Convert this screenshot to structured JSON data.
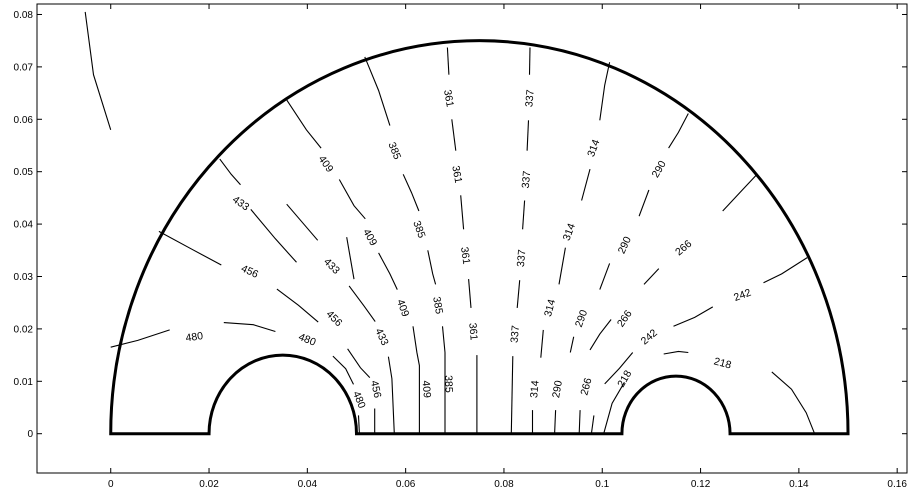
{
  "chart_data": {
    "type": "contour",
    "title": "",
    "xlabel": "",
    "ylabel": "",
    "xlim": [
      -0.015,
      0.162
    ],
    "ylim": [
      -0.0075,
      0.082
    ],
    "xticks": [
      0,
      0.02,
      0.04,
      0.06,
      0.08,
      0.1,
      0.12,
      0.14,
      0.16
    ],
    "xtick_labels": [
      "0",
      "0.02",
      "0.04",
      "0.06",
      "0.08",
      "0.1",
      "0.12",
      "0.14",
      "0.16"
    ],
    "yticks": [
      0,
      0.01,
      0.02,
      0.03,
      0.04,
      0.05,
      0.06,
      0.07,
      0.08
    ],
    "ytick_labels": [
      "0",
      "0.01",
      "0.02",
      "0.03",
      "0.04",
      "0.05",
      "0.06",
      "0.07",
      "0.08"
    ],
    "grid": false,
    "domain": {
      "outer_semicircle": {
        "center": [
          0.075,
          0
        ],
        "radius": 0.075
      },
      "left_hole": {
        "center": [
          0.035,
          0
        ],
        "radius": 0.015
      },
      "right_hole": {
        "center": [
          0.115,
          0
        ],
        "radius": 0.011
      }
    },
    "contour_levels": [
      480,
      456,
      433,
      409,
      385,
      361,
      337,
      314,
      290,
      266,
      242,
      218
    ],
    "contour_labels": [
      {
        "text": "480",
        "x": 0.017,
        "y": 0.0185,
        "angle": -8
      },
      {
        "text": "480",
        "x": 0.04,
        "y": 0.018,
        "angle": 22
      },
      {
        "text": "480",
        "x": 0.0506,
        "y": 0.0065,
        "angle": 68
      },
      {
        "text": "456",
        "x": 0.0283,
        "y": 0.031,
        "angle": 25
      },
      {
        "text": "456",
        "x": 0.0455,
        "y": 0.022,
        "angle": 45
      },
      {
        "text": "456",
        "x": 0.054,
        "y": 0.0085,
        "angle": 78
      },
      {
        "text": "433",
        "x": 0.0265,
        "y": 0.044,
        "angle": 35
      },
      {
        "text": "433",
        "x": 0.045,
        "y": 0.032,
        "angle": 45
      },
      {
        "text": "433",
        "x": 0.0552,
        "y": 0.0185,
        "angle": 65
      },
      {
        "text": "409",
        "x": 0.0438,
        "y": 0.0515,
        "angle": 55
      },
      {
        "text": "409",
        "x": 0.0528,
        "y": 0.0375,
        "angle": 60
      },
      {
        "text": "409",
        "x": 0.0595,
        "y": 0.024,
        "angle": 70
      },
      {
        "text": "409",
        "x": 0.0643,
        "y": 0.0085,
        "angle": 85
      },
      {
        "text": "385",
        "x": 0.0578,
        "y": 0.054,
        "angle": 68
      },
      {
        "text": "385",
        "x": 0.0628,
        "y": 0.039,
        "angle": 70
      },
      {
        "text": "385",
        "x": 0.0666,
        "y": 0.0245,
        "angle": 80
      },
      {
        "text": "385",
        "x": 0.0688,
        "y": 0.0095,
        "angle": 88
      },
      {
        "text": "361",
        "x": 0.0688,
        "y": 0.064,
        "angle": 80
      },
      {
        "text": "361",
        "x": 0.0705,
        "y": 0.0495,
        "angle": 80
      },
      {
        "text": "361",
        "x": 0.0722,
        "y": 0.034,
        "angle": 82
      },
      {
        "text": "361",
        "x": 0.0738,
        "y": 0.0195,
        "angle": 85
      },
      {
        "text": "337",
        "x": 0.0852,
        "y": 0.064,
        "angle": -85
      },
      {
        "text": "337",
        "x": 0.0845,
        "y": 0.0485,
        "angle": -85
      },
      {
        "text": "337",
        "x": 0.0835,
        "y": 0.0335,
        "angle": -85
      },
      {
        "text": "337",
        "x": 0.0822,
        "y": 0.019,
        "angle": -85
      },
      {
        "text": "314",
        "x": 0.0982,
        "y": 0.0545,
        "angle": -70
      },
      {
        "text": "314",
        "x": 0.0932,
        "y": 0.0385,
        "angle": -70
      },
      {
        "text": "314",
        "x": 0.0893,
        "y": 0.024,
        "angle": -75
      },
      {
        "text": "314",
        "x": 0.0862,
        "y": 0.0085,
        "angle": -85
      },
      {
        "text": "290",
        "x": 0.1115,
        "y": 0.0505,
        "angle": -60
      },
      {
        "text": "290",
        "x": 0.1045,
        "y": 0.036,
        "angle": -65
      },
      {
        "text": "290",
        "x": 0.0957,
        "y": 0.022,
        "angle": -70
      },
      {
        "text": "290",
        "x": 0.0908,
        "y": 0.0085,
        "angle": -80
      },
      {
        "text": "266",
        "x": 0.1165,
        "y": 0.0355,
        "angle": -40
      },
      {
        "text": "266",
        "x": 0.1045,
        "y": 0.022,
        "angle": -55
      },
      {
        "text": "266",
        "x": 0.0967,
        "y": 0.009,
        "angle": -75
      },
      {
        "text": "242",
        "x": 0.1285,
        "y": 0.0265,
        "angle": -20
      },
      {
        "text": "242",
        "x": 0.1095,
        "y": 0.0185,
        "angle": -40
      },
      {
        "text": "218",
        "x": 0.1245,
        "y": 0.0135,
        "angle": 15
      },
      {
        "text": "218",
        "x": 0.1045,
        "y": 0.0105,
        "angle": -60
      }
    ],
    "contour_lines": [
      [
        [
          -0.0052,
          0.0805
        ],
        [
          -0.0035,
          0.0685
        ],
        [
          0.0,
          0.058
        ]
      ],
      [
        [
          0.048,
          0.0375
        ],
        [
          0.0495,
          0.0295
        ]
      ],
      [
        [
          0.0358,
          0.0438
        ],
        [
          0.0421,
          0.0369
        ]
      ],
      [
        [
          0.0,
          0.0165
        ],
        [
          0.0055,
          0.0178
        ],
        [
          0.012,
          0.0198
        ]
      ],
      [
        [
          0.023,
          0.0212
        ],
        [
          0.029,
          0.0208
        ],
        [
          0.0335,
          0.0195
        ]
      ],
      [
        [
          0.0452,
          0.0148
        ],
        [
          0.0478,
          0.0124
        ],
        [
          0.0494,
          0.0094
        ]
      ],
      [
        [
          0.0504,
          0.0035
        ],
        [
          0.0506,
          0.0
        ]
      ],
      [
        [
          0.0098,
          0.0386
        ],
        [
          0.0165,
          0.0352
        ],
        [
          0.0225,
          0.0322
        ]
      ],
      [
        [
          0.0338,
          0.0276
        ],
        [
          0.0382,
          0.0245
        ],
        [
          0.0422,
          0.0213
        ]
      ],
      [
        [
          0.0482,
          0.0162
        ],
        [
          0.0508,
          0.0126
        ],
        [
          0.0527,
          0.0107
        ]
      ],
      [
        [
          0.0537,
          0.0048
        ],
        [
          0.0537,
          0.0
        ]
      ],
      [
        [
          0.0222,
          0.0524
        ],
        [
          0.0245,
          0.0495
        ],
        [
          0.0264,
          0.0475
        ]
      ],
      [
        [
          0.0285,
          0.0428
        ],
        [
          0.0335,
          0.0372
        ],
        [
          0.0378,
          0.0327
        ]
      ],
      [
        [
          0.0485,
          0.0282
        ],
        [
          0.0515,
          0.0244
        ],
        [
          0.0538,
          0.0214
        ]
      ],
      [
        [
          0.0565,
          0.0147
        ],
        [
          0.0572,
          0.0105
        ],
        [
          0.0577,
          0.0
        ]
      ],
      [
        [
          0.0358,
          0.0637
        ],
        [
          0.0398,
          0.058
        ],
        [
          0.0428,
          0.0545
        ]
      ],
      [
        [
          0.0465,
          0.0485
        ],
        [
          0.0495,
          0.0435
        ],
        [
          0.0518,
          0.041
        ]
      ],
      [
        [
          0.0545,
          0.0345
        ],
        [
          0.0568,
          0.0305
        ],
        [
          0.0583,
          0.0275
        ]
      ],
      [
        [
          0.0615,
          0.0205
        ],
        [
          0.0623,
          0.0155
        ],
        [
          0.0628,
          0.013
        ],
        [
          0.0628,
          0.0
        ]
      ],
      [
        [
          0.0517,
          0.0719
        ],
        [
          0.0545,
          0.0655
        ],
        [
          0.0568,
          0.0588
        ]
      ],
      [
        [
          0.0595,
          0.0495
        ],
        [
          0.0612,
          0.046
        ],
        [
          0.0627,
          0.0425
        ]
      ],
      [
        [
          0.0645,
          0.035
        ],
        [
          0.0655,
          0.0305
        ],
        [
          0.0661,
          0.0285
        ]
      ],
      [
        [
          0.0675,
          0.0205
        ],
        [
          0.068,
          0.0155
        ],
        [
          0.068,
          0.0
        ]
      ],
      [
        [
          0.0685,
          0.0737
        ],
        [
          0.0688,
          0.0685
        ]
      ],
      [
        [
          0.0694,
          0.06
        ],
        [
          0.0702,
          0.054
        ]
      ],
      [
        [
          0.0712,
          0.0455
        ],
        [
          0.0718,
          0.039
        ]
      ],
      [
        [
          0.0728,
          0.0295
        ],
        [
          0.0733,
          0.024
        ]
      ],
      [
        [
          0.0745,
          0.015
        ],
        [
          0.0745,
          0.0
        ]
      ],
      [
        [
          0.0853,
          0.0737
        ],
        [
          0.0852,
          0.0685
        ]
      ],
      [
        [
          0.085,
          0.0598
        ],
        [
          0.0847,
          0.054
        ]
      ],
      [
        [
          0.0842,
          0.0445
        ],
        [
          0.0838,
          0.039
        ]
      ],
      [
        [
          0.0832,
          0.0293
        ],
        [
          0.0827,
          0.024
        ]
      ],
      [
        [
          0.0818,
          0.0148
        ],
        [
          0.0815,
          0.0
        ]
      ],
      [
        [
          0.1015,
          0.0709
        ],
        [
          0.1005,
          0.0665
        ],
        [
          0.0995,
          0.0598
        ]
      ],
      [
        [
          0.0975,
          0.0505
        ],
        [
          0.0958,
          0.0445
        ]
      ],
      [
        [
          0.0925,
          0.0355
        ],
        [
          0.0912,
          0.0285
        ]
      ],
      [
        [
          0.088,
          0.0198
        ],
        [
          0.0875,
          0.0145
        ]
      ],
      [
        [
          0.0858,
          0.0045
        ],
        [
          0.0858,
          0.0
        ]
      ],
      [
        [
          0.1175,
          0.0611
        ],
        [
          0.1155,
          0.0575
        ],
        [
          0.1135,
          0.0545
        ]
      ],
      [
        [
          0.1095,
          0.0465
        ],
        [
          0.1075,
          0.0415
        ]
      ],
      [
        [
          0.1015,
          0.0325
        ],
        [
          0.0995,
          0.0275
        ]
      ],
      [
        [
          0.0942,
          0.0185
        ],
        [
          0.0935,
          0.0155
        ]
      ],
      [
        [
          0.0905,
          0.0045
        ],
        [
          0.0903,
          0.0
        ]
      ],
      [
        [
          0.1315,
          0.0495
        ],
        [
          0.1285,
          0.0465
        ],
        [
          0.1245,
          0.0425
        ]
      ],
      [
        [
          0.1115,
          0.0315
        ],
        [
          0.1085,
          0.0285
        ]
      ],
      [
        [
          0.1018,
          0.0218
        ],
        [
          0.0995,
          0.019
        ],
        [
          0.0975,
          0.016
        ]
      ],
      [
        [
          0.0955,
          0.0045
        ],
        [
          0.0953,
          0.0
        ]
      ],
      [
        [
          0.1417,
          0.0336
        ],
        [
          0.1365,
          0.0305
        ],
        [
          0.1328,
          0.0288
        ]
      ],
      [
        [
          0.1225,
          0.0242
        ],
        [
          0.1188,
          0.0222
        ],
        [
          0.1145,
          0.0205
        ]
      ],
      [
        [
          0.1062,
          0.0155
        ],
        [
          0.1035,
          0.0125
        ],
        [
          0.1005,
          0.0095
        ]
      ],
      [
        [
          0.0983,
          0.0035
        ],
        [
          0.0978,
          0.0
        ]
      ],
      [
        [
          0.1125,
          0.0152
        ],
        [
          0.1155,
          0.0157
        ],
        [
          0.1175,
          0.0155
        ]
      ],
      [
        [
          0.1345,
          0.0118
        ],
        [
          0.1385,
          0.0085
        ],
        [
          0.1415,
          0.004
        ],
        [
          0.1432,
          0.0
        ]
      ],
      [
        [
          0.1045,
          0.0098
        ],
        [
          0.102,
          0.0058
        ],
        [
          0.1003,
          0.0
        ]
      ]
    ]
  }
}
